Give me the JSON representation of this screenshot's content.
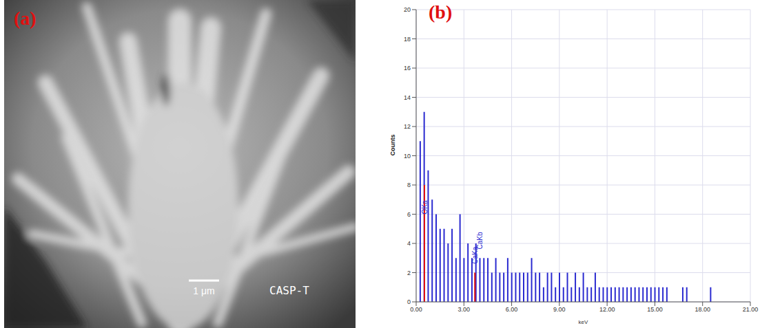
{
  "image": {
    "panel_label": "(a)",
    "scale_bar": "1 μm",
    "label": "CASP-T"
  },
  "chart_data": {
    "type": "bar",
    "panel_label": "(b)",
    "x_label": "keV",
    "y_label": "Counts",
    "color": "#2a2ad0",
    "grid": true,
    "xlim": [
      0,
      21
    ],
    "xticks": [
      {
        "value": 0,
        "label": "0.00"
      },
      {
        "value": 3,
        "label": "3.00"
      },
      {
        "value": 6,
        "label": "6.00"
      },
      {
        "value": 9,
        "label": "9.00"
      },
      {
        "value": 12,
        "label": "12.00"
      },
      {
        "value": 15,
        "label": "15.00"
      },
      {
        "value": 18,
        "label": "18.00"
      },
      {
        "value": 21,
        "label": "21.00"
      }
    ],
    "ylim": [
      0,
      20
    ],
    "yticks": [
      0,
      2,
      4,
      6,
      8,
      10,
      12,
      14,
      16,
      18,
      20
    ],
    "x": [
      0.25,
      0.5,
      0.75,
      1.0,
      1.25,
      1.5,
      1.75,
      2.0,
      2.25,
      2.5,
      2.75,
      3.0,
      3.25,
      3.5,
      3.75,
      4.0,
      4.25,
      4.5,
      4.75,
      5.0,
      5.25,
      5.5,
      5.75,
      6.0,
      6.25,
      6.5,
      6.75,
      7.0,
      7.25,
      7.5,
      7.75,
      8.0,
      8.25,
      8.5,
      8.75,
      9.0,
      9.25,
      9.5,
      9.75,
      10.0,
      10.25,
      10.5,
      10.75,
      11.0,
      11.25,
      11.5,
      11.75,
      12.0,
      12.25,
      12.5,
      12.75,
      13.0,
      13.25,
      13.5,
      13.75,
      14.0,
      14.25,
      14.5,
      14.75,
      15.0,
      15.25,
      15.5,
      15.75,
      16.0,
      16.25,
      16.5,
      16.75,
      17.0,
      17.25,
      17.5,
      17.75,
      18.0,
      18.25,
      18.5
    ],
    "values": [
      11,
      13,
      9,
      7,
      6,
      5,
      5,
      4,
      5,
      3,
      6,
      3,
      4,
      3,
      4,
      3,
      3,
      3,
      2,
      3,
      2,
      2,
      3,
      2,
      2,
      2,
      2,
      2,
      3,
      2,
      2,
      1,
      2,
      2,
      1,
      2,
      1,
      2,
      1,
      2,
      1,
      2,
      1,
      1,
      2,
      1,
      1,
      1,
      1,
      1,
      1,
      1,
      1,
      1,
      1,
      1,
      1,
      1,
      1,
      1,
      1,
      1,
      1,
      0,
      0,
      0,
      1,
      1,
      0,
      0,
      0,
      0,
      0,
      1
    ],
    "markers": [
      {
        "x": 0.52,
        "y": 8,
        "color": "#e01010"
      },
      {
        "x": 3.69,
        "y": 2,
        "color": "#e01010"
      }
    ],
    "annotations": [
      {
        "text": "OKa",
        "x": 0.52,
        "y": 6
      },
      {
        "text": "CaKa",
        "x": 3.69,
        "y": 2.6
      },
      {
        "text": "CaKb",
        "x": 4.01,
        "y": 3.6
      }
    ]
  }
}
